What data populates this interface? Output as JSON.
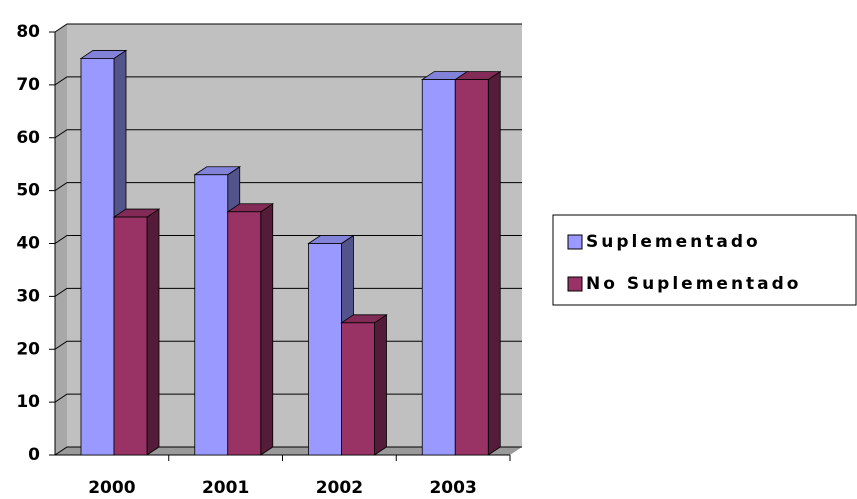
{
  "chart_data": {
    "type": "bar3d",
    "categories": [
      "2000",
      "2001",
      "2002",
      "2003"
    ],
    "series": [
      {
        "name": "Suplementado",
        "color": "#9999ff",
        "values": [
          75,
          53,
          40,
          71
        ]
      },
      {
        "name": "No Suplementado",
        "color": "#993366",
        "values": [
          45,
          46,
          25,
          71
        ]
      }
    ],
    "ylim": [
      0,
      80
    ],
    "yticks": [
      0,
      10,
      20,
      30,
      40,
      50,
      60,
      70,
      80
    ],
    "grid": true,
    "legend": "right"
  }
}
